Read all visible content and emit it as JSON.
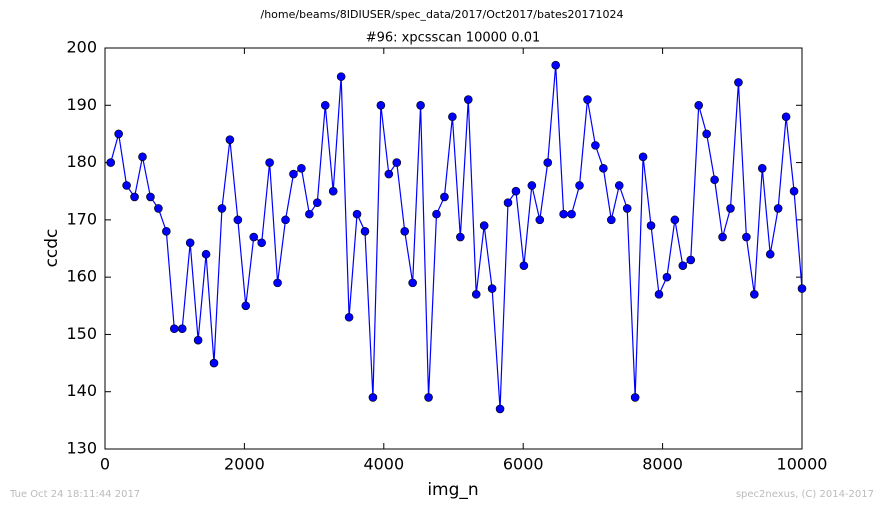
{
  "chart_data": {
    "type": "line",
    "suptitle": "/home/beams/8IDIUSER/spec_data/2017/Oct2017/bates20171024",
    "title": "#96: xpcsscan 10000 0.01",
    "xlabel": "img_n",
    "ylabel": "ccdc",
    "footer_left": "Tue Oct 24 18:11:44 2017",
    "footer_right": "spec2nexus, (C) 2014-2017",
    "xlim": [
      0,
      10000
    ],
    "xticks": [
      0,
      2000,
      4000,
      6000,
      8000,
      10000
    ],
    "ylim": [
      130,
      200
    ],
    "yticks": [
      130,
      140,
      150,
      160,
      170,
      180,
      190,
      200
    ],
    "grid": false,
    "series": [
      {
        "name": "ccdc",
        "color": "#0000ff",
        "x": [
          82,
          196,
          310,
          424,
          538,
          652,
          766,
          880,
          994,
          1108,
          1222,
          1336,
          1450,
          1564,
          1678,
          1792,
          1906,
          2020,
          2134,
          2248,
          2362,
          2476,
          2590,
          2704,
          2818,
          2932,
          3046,
          3160,
          3274,
          3388,
          3502,
          3616,
          3730,
          3844,
          3958,
          4072,
          4186,
          4300,
          4414,
          4528,
          4642,
          4756,
          4870,
          4984,
          5098,
          5212,
          5326,
          5440,
          5554,
          5668,
          5782,
          5896,
          6010,
          6124,
          6238,
          6352,
          6466,
          6580,
          6694,
          6808,
          6922,
          7036,
          7150,
          7264,
          7378,
          7492,
          7606,
          7720,
          7834,
          7948,
          8062,
          8176,
          8290,
          8404,
          8518,
          8632,
          8746,
          8860,
          8974,
          9088,
          9202,
          9316,
          9430,
          9544,
          9658,
          9772,
          9886,
          10000
        ],
        "values": [
          180,
          185,
          176,
          174,
          181,
          174,
          172,
          168,
          151,
          151,
          166,
          149,
          164,
          145,
          172,
          184,
          170,
          155,
          167,
          166,
          180,
          159,
          170,
          178,
          179,
          171,
          173,
          190,
          175,
          195,
          153,
          171,
          168,
          139,
          190,
          178,
          180,
          168,
          159,
          190,
          139,
          171,
          174,
          188,
          167,
          191,
          157,
          169,
          158,
          137,
          173,
          175,
          162,
          176,
          170,
          180,
          197,
          171,
          171,
          176,
          191,
          183,
          179,
          170,
          176,
          172,
          139,
          181,
          169,
          157,
          160,
          170,
          162,
          163,
          190,
          185,
          177,
          167,
          172,
          194,
          167,
          157,
          179,
          164,
          172,
          188,
          175,
          158
        ]
      }
    ]
  }
}
